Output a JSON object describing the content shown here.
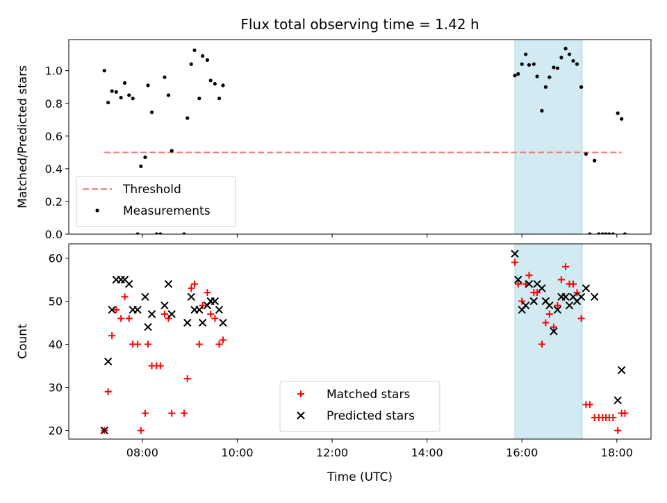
{
  "chart_data": {
    "title": "Flux total observing time = 1.42 h",
    "xlabel": "Time (UTC)",
    "x_unit": "hours UTC",
    "x_ticks": [
      "08:00",
      "10:00",
      "12:00",
      "14:00",
      "16:00",
      "18:00"
    ],
    "shaded_interval": {
      "x_start": 15.85,
      "x_end": 17.27,
      "color": "#add8e6"
    },
    "panels": [
      {
        "type": "scatter",
        "ylabel": "Matched/Predicted stars",
        "xlim": [
          6.45,
          18.72
        ],
        "ylim": [
          0,
          1.19
        ],
        "y_ticks": [
          "0.0",
          "0.2",
          "0.4",
          "0.6",
          "0.8",
          "1.0"
        ],
        "legend_position": "lower-left",
        "threshold": {
          "name": "Threshold",
          "value": 0.5,
          "x_range": [
            7.2,
            18.1
          ],
          "color": "#f08080",
          "style": "dashed"
        },
        "series": [
          {
            "name": "Measurements",
            "color": "#000000",
            "points": [
              [
                7.2,
                1.0
              ],
              [
                7.28,
                0.805
              ],
              [
                7.36,
                0.875
              ],
              [
                7.45,
                0.87
              ],
              [
                7.55,
                0.835
              ],
              [
                7.63,
                0.925
              ],
              [
                7.72,
                0.85
              ],
              [
                7.8,
                0.83
              ],
              [
                7.9,
                0.0
              ],
              [
                7.97,
                0.415
              ],
              [
                8.06,
                0.47
              ],
              [
                8.12,
                0.91
              ],
              [
                8.2,
                0.745
              ],
              [
                8.3,
                0.0
              ],
              [
                8.38,
                0.0
              ],
              [
                8.47,
                0.96
              ],
              [
                8.55,
                0.85
              ],
              [
                8.62,
                0.51
              ],
              [
                8.88,
                0.0
              ],
              [
                8.95,
                0.71
              ],
              [
                9.03,
                1.04
              ],
              [
                9.1,
                1.125
              ],
              [
                9.2,
                0.83
              ],
              [
                9.27,
                1.09
              ],
              [
                9.37,
                1.065
              ],
              [
                9.44,
                0.94
              ],
              [
                9.53,
                0.92
              ],
              [
                9.62,
                0.83
              ],
              [
                9.7,
                0.91
              ],
              [
                15.85,
                0.97
              ],
              [
                15.92,
                0.98
              ],
              [
                16.0,
                1.04
              ],
              [
                16.08,
                1.1
              ],
              [
                16.15,
                1.035
              ],
              [
                16.25,
                1.04
              ],
              [
                16.32,
                0.965
              ],
              [
                16.42,
                0.755
              ],
              [
                16.5,
                0.9
              ],
              [
                16.58,
                0.96
              ],
              [
                16.67,
                1.02
              ],
              [
                16.75,
                1.015
              ],
              [
                16.83,
                1.08
              ],
              [
                16.92,
                1.135
              ],
              [
                17.0,
                1.1
              ],
              [
                17.08,
                1.06
              ],
              [
                17.16,
                1.04
              ],
              [
                17.25,
                0.9
              ],
              [
                17.35,
                0.49
              ],
              [
                17.43,
                0.0
              ],
              [
                17.53,
                0.45
              ],
              [
                17.62,
                0.0
              ],
              [
                17.7,
                0.0
              ],
              [
                17.77,
                0.0
              ],
              [
                17.84,
                0.0
              ],
              [
                17.92,
                0.0
              ],
              [
                18.02,
                0.74
              ],
              [
                18.1,
                0.705
              ],
              [
                18.17,
                0.0
              ]
            ]
          }
        ]
      },
      {
        "type": "scatter",
        "ylabel": "Count",
        "xlim": [
          6.45,
          18.72
        ],
        "ylim": [
          18,
          63.3
        ],
        "y_ticks": [
          "20",
          "30",
          "40",
          "50",
          "60"
        ],
        "legend_position": "lower-center",
        "series": [
          {
            "name": "Matched stars",
            "marker": "plus",
            "color": "#ff0000",
            "points": [
              [
                7.2,
                20
              ],
              [
                7.28,
                29
              ],
              [
                7.36,
                42
              ],
              [
                7.45,
                48
              ],
              [
                7.55,
                46
              ],
              [
                7.63,
                51
              ],
              [
                7.72,
                46
              ],
              [
                7.8,
                40
              ],
              [
                7.9,
                40
              ],
              [
                7.97,
                20
              ],
              [
                8.06,
                24
              ],
              [
                8.12,
                40
              ],
              [
                8.2,
                35
              ],
              [
                8.3,
                35
              ],
              [
                8.38,
                35
              ],
              [
                8.47,
                47
              ],
              [
                8.55,
                46
              ],
              [
                8.62,
                24
              ],
              [
                8.88,
                24
              ],
              [
                8.95,
                32
              ],
              [
                9.03,
                53
              ],
              [
                9.1,
                54
              ],
              [
                9.2,
                40
              ],
              [
                9.27,
                49
              ],
              [
                9.37,
                52
              ],
              [
                9.44,
                47
              ],
              [
                9.53,
                46
              ],
              [
                9.62,
                40
              ],
              [
                9.7,
                41
              ],
              [
                15.85,
                59
              ],
              [
                15.92,
                54
              ],
              [
                16.0,
                50
              ],
              [
                16.08,
                54
              ],
              [
                16.15,
                56
              ],
              [
                16.25,
                52
              ],
              [
                16.32,
                52
              ],
              [
                16.42,
                40
              ],
              [
                16.5,
                45
              ],
              [
                16.58,
                47
              ],
              [
                16.67,
                44
              ],
              [
                16.75,
                49
              ],
              [
                16.83,
                55
              ],
              [
                16.92,
                58
              ],
              [
                17.0,
                54
              ],
              [
                17.08,
                54
              ],
              [
                17.16,
                52
              ],
              [
                17.25,
                46
              ],
              [
                17.35,
                26
              ],
              [
                17.43,
                26
              ],
              [
                17.53,
                23
              ],
              [
                17.62,
                23
              ],
              [
                17.7,
                23
              ],
              [
                17.77,
                23
              ],
              [
                17.84,
                23
              ],
              [
                17.92,
                23
              ],
              [
                18.02,
                20
              ],
              [
                18.1,
                24
              ],
              [
                18.17,
                24
              ]
            ]
          },
          {
            "name": "Predicted stars",
            "marker": "x",
            "color": "#000000",
            "points": [
              [
                7.2,
                20
              ],
              [
                7.28,
                36
              ],
              [
                7.36,
                48
              ],
              [
                7.45,
                55
              ],
              [
                7.55,
                55
              ],
              [
                7.63,
                55
              ],
              [
                7.72,
                54
              ],
              [
                7.8,
                48
              ],
              [
                7.9,
                48
              ],
              [
                8.06,
                51
              ],
              [
                8.12,
                44
              ],
              [
                8.2,
                47
              ],
              [
                8.47,
                49
              ],
              [
                8.55,
                54
              ],
              [
                8.62,
                47
              ],
              [
                8.95,
                45
              ],
              [
                9.03,
                51
              ],
              [
                9.1,
                48
              ],
              [
                9.2,
                48
              ],
              [
                9.27,
                45
              ],
              [
                9.37,
                49
              ],
              [
                9.44,
                50
              ],
              [
                9.53,
                50
              ],
              [
                9.62,
                48
              ],
              [
                9.7,
                45
              ],
              [
                15.85,
                61
              ],
              [
                15.92,
                55
              ],
              [
                16.0,
                48
              ],
              [
                16.08,
                49
              ],
              [
                16.15,
                54
              ],
              [
                16.25,
                50
              ],
              [
                16.32,
                54
              ],
              [
                16.42,
                53
              ],
              [
                16.5,
                50
              ],
              [
                16.58,
                49
              ],
              [
                16.67,
                43
              ],
              [
                16.75,
                48
              ],
              [
                16.83,
                51
              ],
              [
                16.92,
                51
              ],
              [
                17.0,
                49
              ],
              [
                17.08,
                51
              ],
              [
                17.16,
                50
              ],
              [
                17.25,
                51
              ],
              [
                17.35,
                53
              ],
              [
                17.53,
                51
              ],
              [
                18.02,
                27
              ],
              [
                18.1,
                34
              ]
            ]
          }
        ]
      }
    ]
  }
}
